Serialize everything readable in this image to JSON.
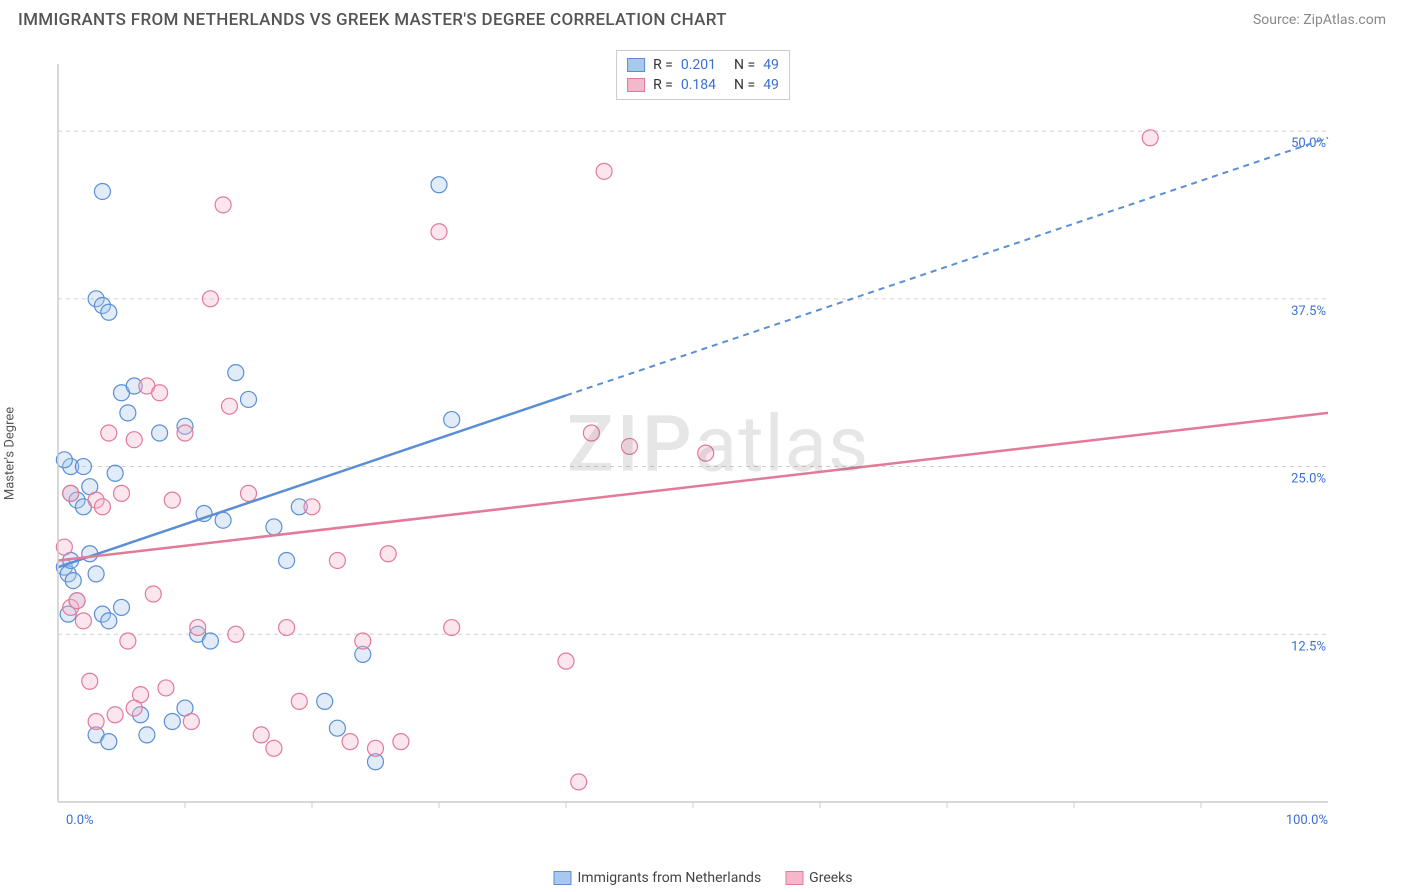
{
  "header": {
    "title": "IMMIGRANTS FROM NETHERLANDS VS GREEK MASTER'S DEGREE CORRELATION CHART",
    "source": "Source: ZipAtlas.com"
  },
  "watermark": {
    "zip": "ZIP",
    "atlas": "atlas"
  },
  "chart": {
    "type": "scatter",
    "y_axis_label": "Master's Degree",
    "xlim": [
      0,
      100
    ],
    "ylim": [
      0,
      55
    ],
    "x_tick_labels": {
      "min": "0.0%",
      "max": "100.0%"
    },
    "y_ticks": [
      {
        "v": 12.5,
        "label": "12.5%"
      },
      {
        "v": 25.0,
        "label": "25.0%"
      },
      {
        "v": 37.5,
        "label": "37.5%"
      },
      {
        "v": 50.0,
        "label": "50.0%"
      }
    ],
    "x_minor_ticks": [
      10,
      20,
      30,
      40,
      50,
      60,
      70,
      80,
      90
    ],
    "grid_color": "#d0d0d0",
    "axis_color": "#cccccc",
    "background_color": "#ffffff",
    "tick_label_color": "#3b6fd6",
    "series": [
      {
        "name": "Immigrants from Netherlands",
        "color_stroke": "#5a8fd6",
        "color_fill": "#a9c9ec",
        "r_value": "0.201",
        "n_value": "49",
        "trend": {
          "x1": 0,
          "y1": 17.5,
          "x2": 100,
          "y2": 49.5,
          "x_solid_end": 40
        },
        "radius": 8,
        "points": [
          [
            0.5,
            17.5
          ],
          [
            0.8,
            17.0
          ],
          [
            1.0,
            18.0
          ],
          [
            1.2,
            16.5
          ],
          [
            1.0,
            23.0
          ],
          [
            1.5,
            22.5
          ],
          [
            2.0,
            22.0
          ],
          [
            2.5,
            23.5
          ],
          [
            1.0,
            25.0
          ],
          [
            0.5,
            25.5
          ],
          [
            3.0,
            37.5
          ],
          [
            3.5,
            37.0
          ],
          [
            4.0,
            36.5
          ],
          [
            2.0,
            25.0
          ],
          [
            4.5,
            24.5
          ],
          [
            5.0,
            30.5
          ],
          [
            5.5,
            29.0
          ],
          [
            6.0,
            31.0
          ],
          [
            3.0,
            17.0
          ],
          [
            2.5,
            18.5
          ],
          [
            3.5,
            14.0
          ],
          [
            4.0,
            13.5
          ],
          [
            5.0,
            14.5
          ],
          [
            6.5,
            6.5
          ],
          [
            7.0,
            5.0
          ],
          [
            3.0,
            5.0
          ],
          [
            4.0,
            4.5
          ],
          [
            9.0,
            6.0
          ],
          [
            10.0,
            7.0
          ],
          [
            11.0,
            12.5
          ],
          [
            12.0,
            12.0
          ],
          [
            8.0,
            27.5
          ],
          [
            10.0,
            28.0
          ],
          [
            11.5,
            21.5
          ],
          [
            13.0,
            21.0
          ],
          [
            14.0,
            32.0
          ],
          [
            15.0,
            30.0
          ],
          [
            17.0,
            20.5
          ],
          [
            18.0,
            18.0
          ],
          [
            19.0,
            22.0
          ],
          [
            21.0,
            7.5
          ],
          [
            22.0,
            5.5
          ],
          [
            24.0,
            11.0
          ],
          [
            25.0,
            3.0
          ],
          [
            30.0,
            46.0
          ],
          [
            31.0,
            28.5
          ],
          [
            3.5,
            45.5
          ],
          [
            1.5,
            15.0
          ],
          [
            0.8,
            14.0
          ]
        ]
      },
      {
        "name": "Greeks",
        "color_stroke": "#e37a9a",
        "color_fill": "#f5b8cb",
        "r_value": "0.184",
        "n_value": "49",
        "trend": {
          "x1": 0,
          "y1": 18.0,
          "x2": 100,
          "y2": 29.0,
          "x_solid_end": 100
        },
        "radius": 8,
        "points": [
          [
            1.0,
            14.5
          ],
          [
            1.5,
            15.0
          ],
          [
            2.0,
            13.5
          ],
          [
            3.0,
            22.5
          ],
          [
            3.5,
            22.0
          ],
          [
            4.0,
            27.5
          ],
          [
            5.0,
            23.0
          ],
          [
            6.0,
            27.0
          ],
          [
            7.0,
            31.0
          ],
          [
            8.0,
            30.5
          ],
          [
            5.5,
            12.0
          ],
          [
            6.5,
            8.0
          ],
          [
            7.5,
            15.5
          ],
          [
            9.0,
            22.5
          ],
          [
            10.0,
            27.5
          ],
          [
            11.0,
            13.0
          ],
          [
            12.0,
            37.5
          ],
          [
            13.0,
            44.5
          ],
          [
            14.0,
            12.5
          ],
          [
            15.0,
            23.0
          ],
          [
            16.0,
            5.0
          ],
          [
            17.0,
            4.0
          ],
          [
            18.0,
            13.0
          ],
          [
            19.0,
            7.5
          ],
          [
            20.0,
            22.0
          ],
          [
            22.0,
            18.0
          ],
          [
            23.0,
            4.5
          ],
          [
            24.0,
            12.0
          ],
          [
            25.0,
            4.0
          ],
          [
            26.0,
            18.5
          ],
          [
            27.0,
            4.5
          ],
          [
            30.0,
            42.5
          ],
          [
            31.0,
            13.0
          ],
          [
            40.0,
            10.5
          ],
          [
            41.0,
            1.5
          ],
          [
            42.0,
            27.5
          ],
          [
            43.0,
            47.0
          ],
          [
            45.0,
            26.5
          ],
          [
            51.0,
            26.0
          ],
          [
            6.0,
            7.0
          ],
          [
            8.5,
            8.5
          ],
          [
            2.5,
            9.0
          ],
          [
            0.5,
            19.0
          ],
          [
            1.0,
            23.0
          ],
          [
            86.0,
            49.5
          ],
          [
            3.0,
            6.0
          ],
          [
            4.5,
            6.5
          ],
          [
            10.5,
            6.0
          ],
          [
            13.5,
            29.5
          ]
        ]
      }
    ]
  },
  "legend_bottom": [
    {
      "label": "Immigrants from Netherlands",
      "fill": "#a9c9ec",
      "stroke": "#5a8fd6"
    },
    {
      "label": "Greeks",
      "fill": "#f5b8cb",
      "stroke": "#e37a9a"
    }
  ]
}
